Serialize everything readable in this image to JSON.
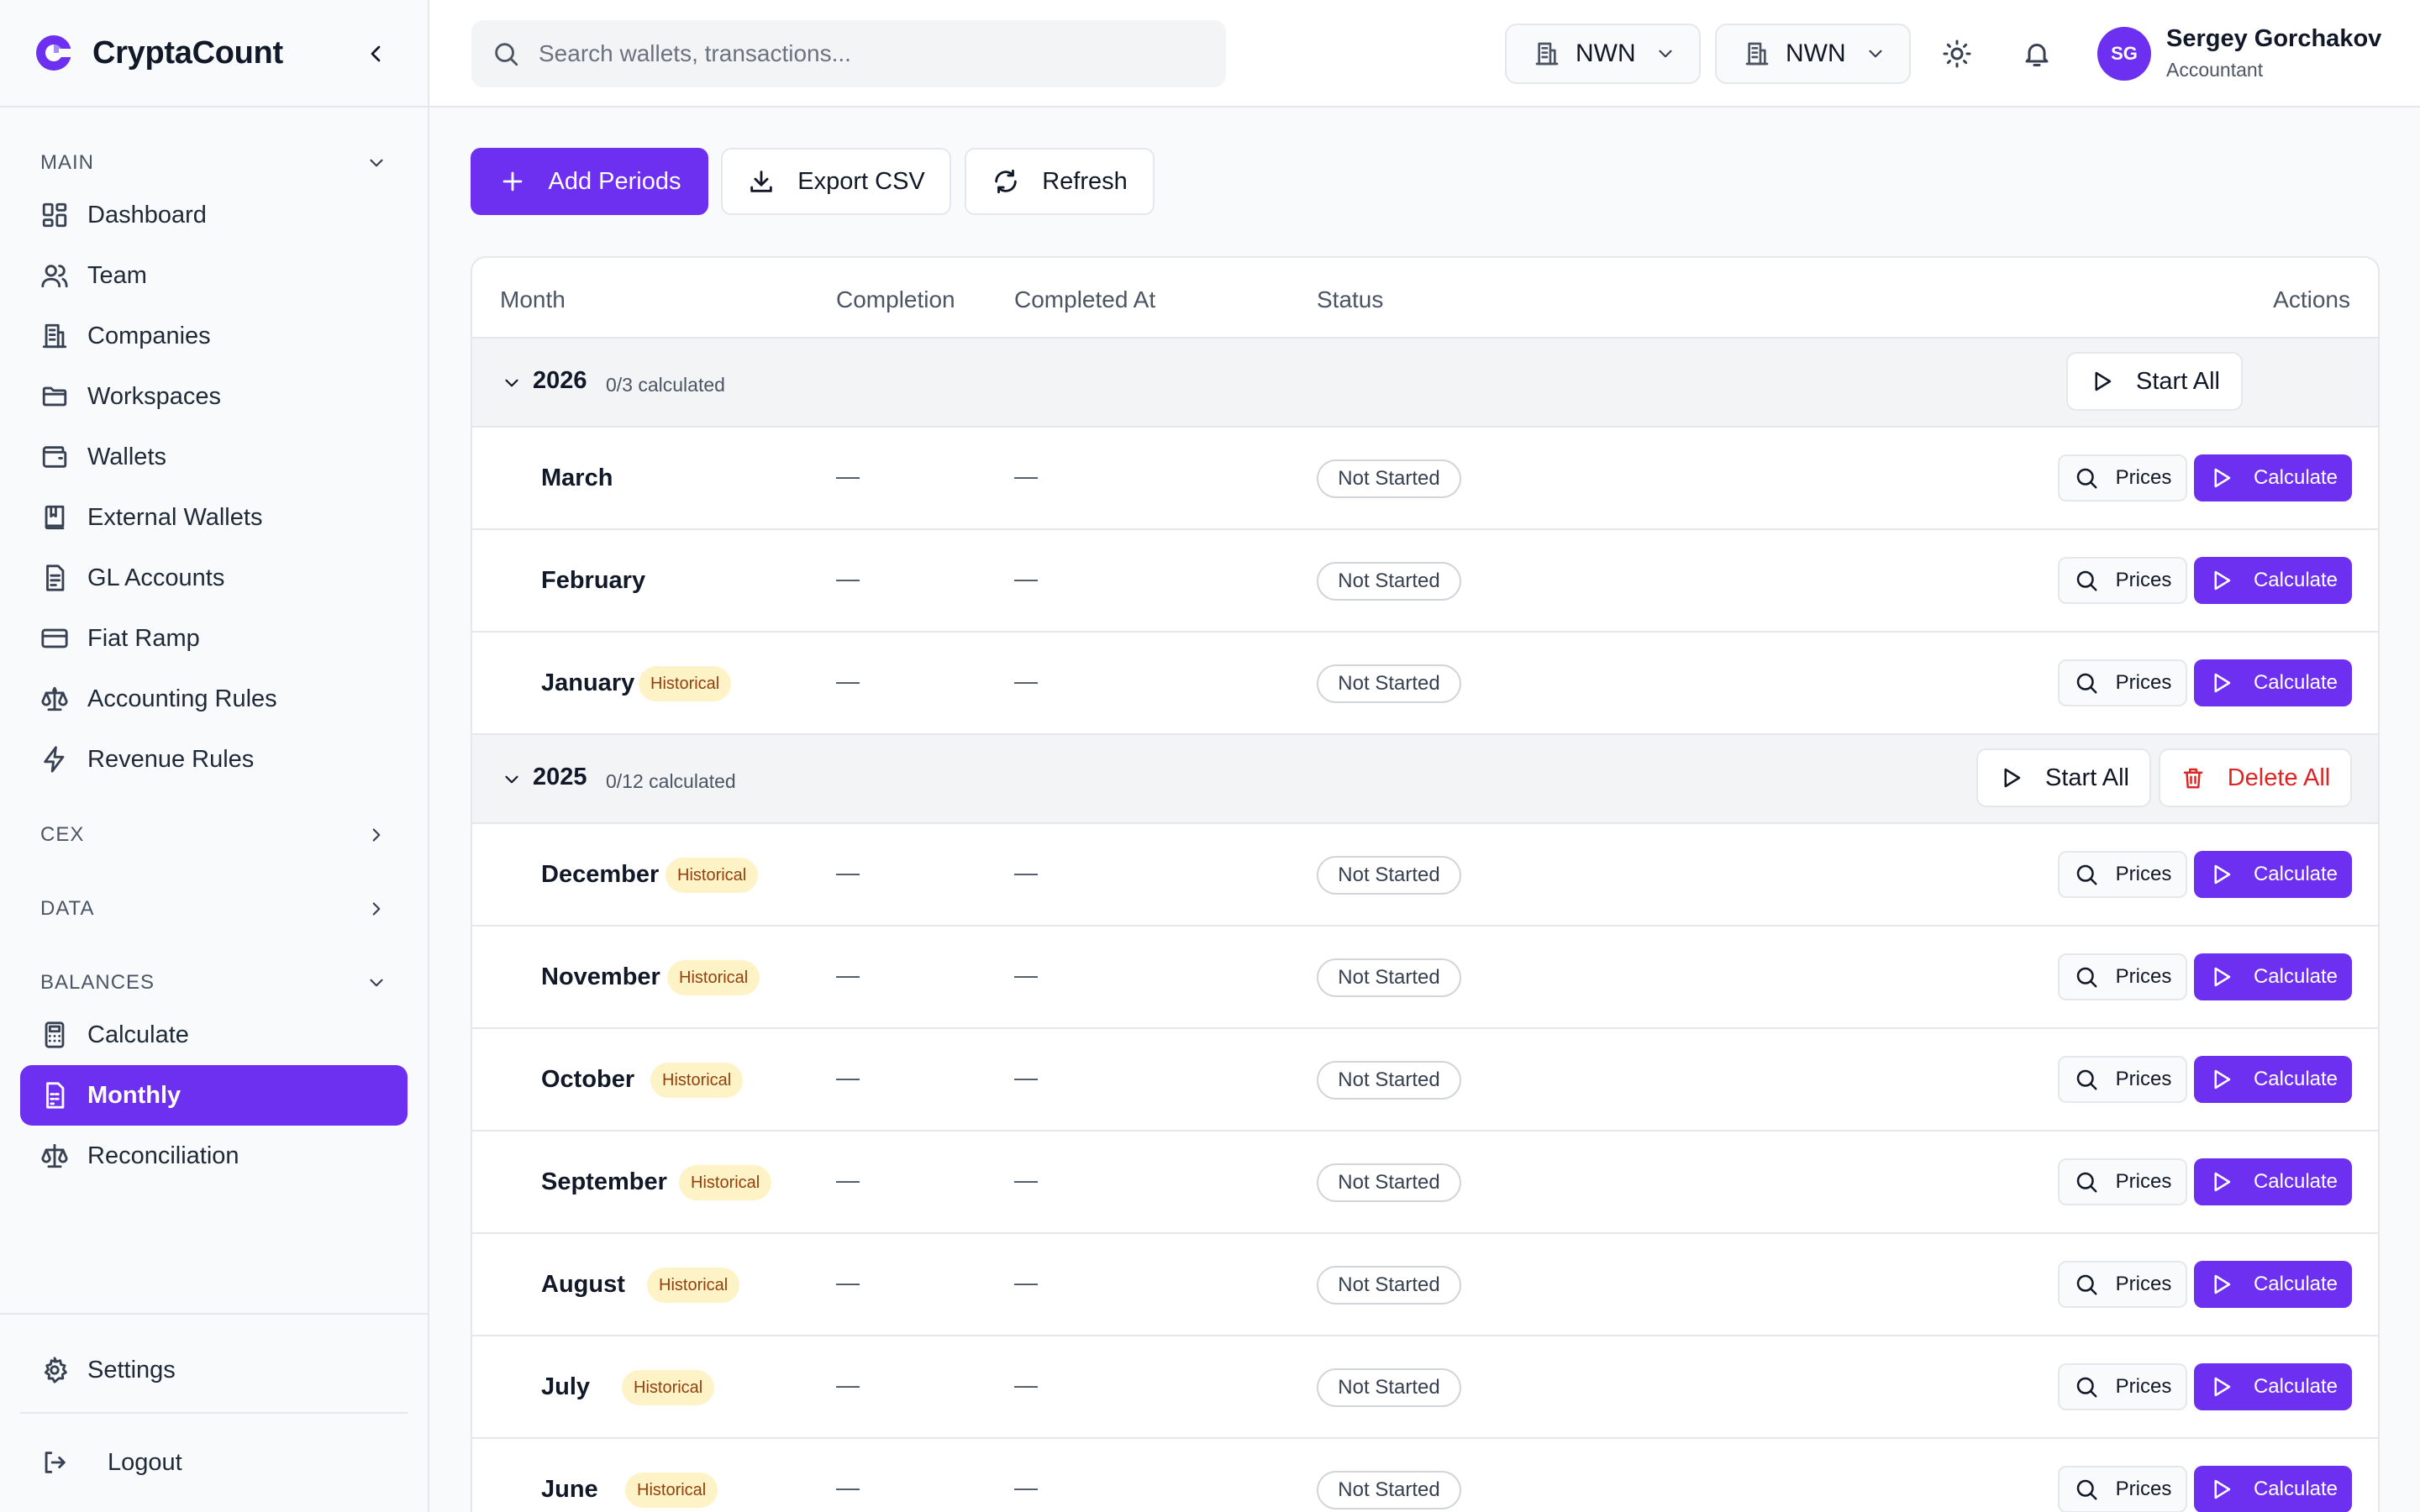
{
  "app": {
    "name": "CryptaCount",
    "brand_color": "#6d2ff0"
  },
  "sidebar": {
    "sections": [
      {
        "label": "MAIN",
        "expanded": true,
        "items": [
          {
            "label": "Dashboard",
            "icon": "dashboard-icon"
          },
          {
            "label": "Team",
            "icon": "users-icon"
          },
          {
            "label": "Companies",
            "icon": "building-icon"
          },
          {
            "label": "Workspaces",
            "icon": "folder-icon"
          },
          {
            "label": "Wallets",
            "icon": "wallet-icon"
          },
          {
            "label": "External Wallets",
            "icon": "book-icon"
          },
          {
            "label": "GL Accounts",
            "icon": "ledger-icon"
          },
          {
            "label": "Fiat Ramp",
            "icon": "credit-card-icon"
          },
          {
            "label": "Accounting Rules",
            "icon": "scale-icon"
          },
          {
            "label": "Revenue Rules",
            "icon": "lightning-icon"
          }
        ]
      },
      {
        "label": "CEX",
        "expanded": false,
        "items": []
      },
      {
        "label": "DATA",
        "expanded": false,
        "items": []
      },
      {
        "label": "BALANCES",
        "expanded": true,
        "items": [
          {
            "label": "Calculate",
            "icon": "calculator-icon"
          },
          {
            "label": "Monthly",
            "icon": "calendar-sheet-icon",
            "active": true
          },
          {
            "label": "Reconciliation",
            "icon": "scale-icon"
          }
        ]
      }
    ],
    "footer": {
      "settings": "Settings",
      "logout": "Logout"
    }
  },
  "topbar": {
    "search_placeholder": "Search wallets, transactions...",
    "selectors": [
      "NWN",
      "NWN"
    ],
    "user": {
      "initials": "SG",
      "name": "Sergey Gorchakov",
      "role": "Accountant"
    }
  },
  "toolbar": {
    "add_periods": "Add Periods",
    "export_csv": "Export CSV",
    "refresh": "Refresh"
  },
  "table": {
    "columns": [
      "Month",
      "Completion",
      "Completed At",
      "Status",
      "Actions"
    ],
    "dash": "—",
    "prices_label": "Prices",
    "calculate_label": "Calculate",
    "start_all_label": "Start All",
    "delete_all_label": "Delete All",
    "years": [
      {
        "year": "2026",
        "meta": "0/3 calculated",
        "expanded": true,
        "months": [
          {
            "name": "March",
            "historical": false,
            "completion": "—",
            "completed_at": "—",
            "status": "Not Started"
          },
          {
            "name": "February",
            "historical": false,
            "completion": "—",
            "completed_at": "—",
            "status": "Not Started"
          },
          {
            "name": "January",
            "historical": true,
            "badge": "Historical",
            "completion": "—",
            "completed_at": "—",
            "status": "Not Started"
          }
        ]
      },
      {
        "year": "2025",
        "meta": "0/12 calculated",
        "expanded": true,
        "months": [
          {
            "name": "December",
            "historical": true,
            "badge": "Historical",
            "completion": "—",
            "completed_at": "—",
            "status": "Not Started"
          },
          {
            "name": "November",
            "historical": true,
            "badge": "Historical",
            "completion": "—",
            "completed_at": "—",
            "status": "Not Started"
          },
          {
            "name": "October",
            "historical": true,
            "badge": "Historical",
            "completion": "—",
            "completed_at": "—",
            "status": "Not Started"
          },
          {
            "name": "September",
            "historical": true,
            "badge": "Historical",
            "completion": "—",
            "completed_at": "—",
            "status": "Not Started"
          },
          {
            "name": "August",
            "historical": true,
            "badge": "Historical",
            "completion": "—",
            "completed_at": "—",
            "status": "Not Started"
          },
          {
            "name": "July",
            "historical": true,
            "badge": "Historical",
            "completion": "—",
            "completed_at": "—",
            "status": "Not Started"
          },
          {
            "name": "June",
            "historical": true,
            "badge": "Historical",
            "completion": "—",
            "completed_at": "—",
            "status": "Not Started"
          }
        ]
      }
    ]
  }
}
